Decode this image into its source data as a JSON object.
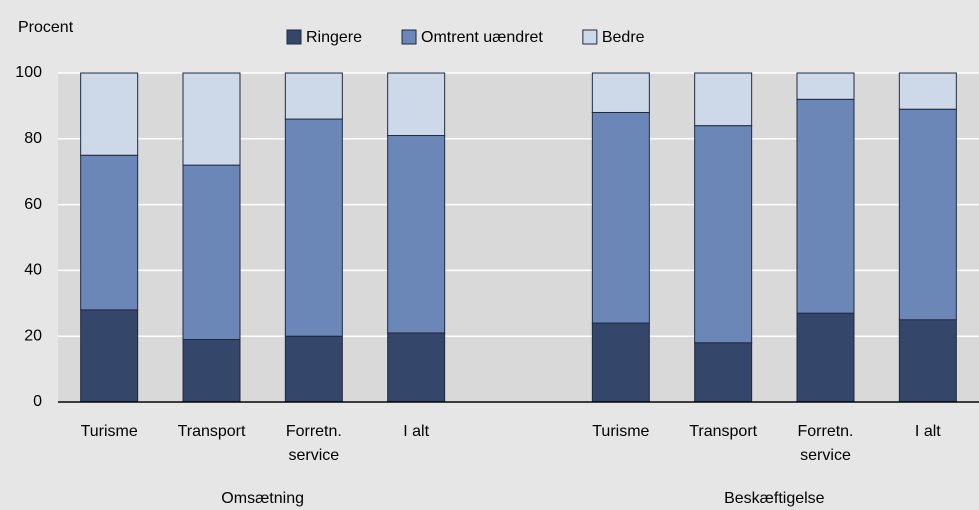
{
  "chart_data": {
    "type": "stacked_bar",
    "y_label": "Procent",
    "categories": [
      "Turisme",
      "Transport",
      "Forretn. service",
      "I alt",
      null,
      "Turisme",
      "Transport",
      "Forretn. service",
      "I alt"
    ],
    "groups": [
      "Omsætning",
      "Beskæftigelse"
    ],
    "series": [
      {
        "name": "Ringere",
        "color": "#34476b",
        "values": [
          28,
          19,
          20,
          21,
          null,
          24,
          18,
          27,
          25
        ]
      },
      {
        "name": "Omtrent uændret",
        "color": "#6a87b8",
        "values": [
          47,
          53,
          66,
          60,
          null,
          64,
          66,
          65,
          64
        ]
      },
      {
        "name": "Bedre",
        "color": "#cdd8e8",
        "values": [
          25,
          28,
          14,
          19,
          null,
          12,
          16,
          8,
          11
        ]
      }
    ],
    "ylim": [
      0,
      100
    ],
    "yticks": [
      0,
      20,
      40,
      60,
      80,
      100
    ],
    "grid": true,
    "legend": "top"
  }
}
